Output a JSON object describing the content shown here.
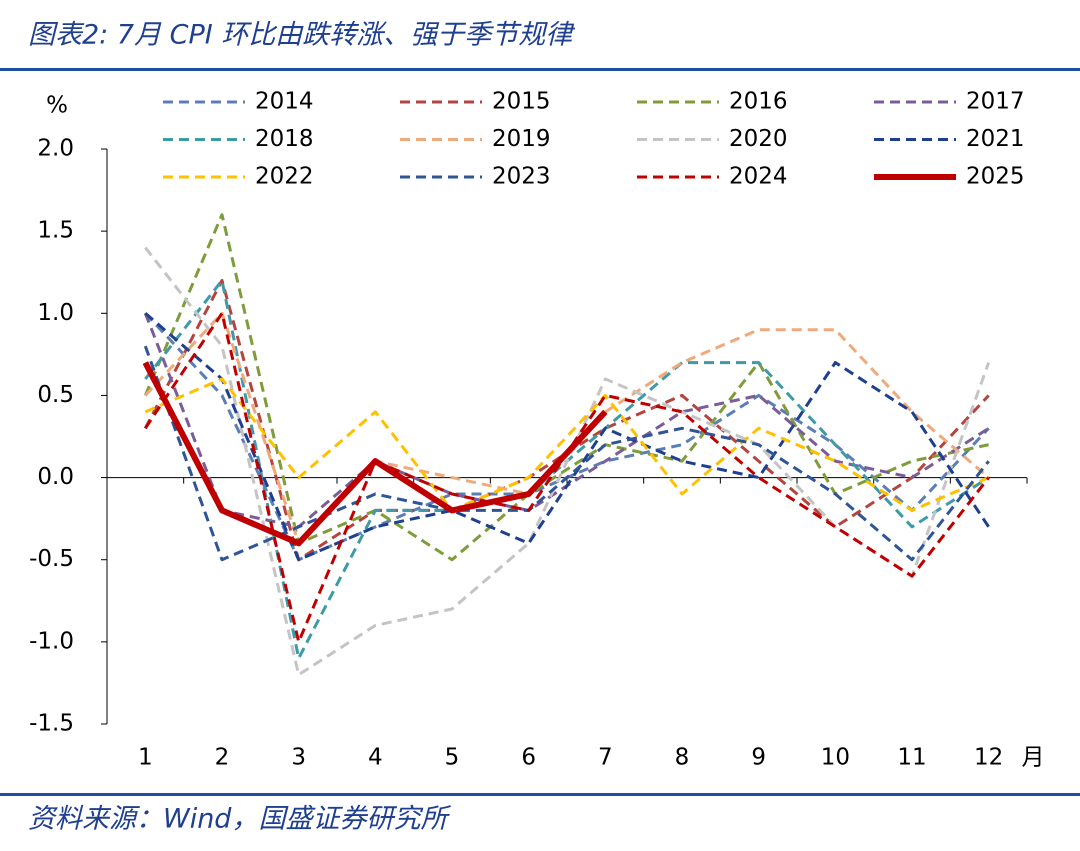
{
  "chart_data": {
    "type": "line",
    "title": "图表2: 7月 CPI 环比由跌转涨、强于季节规律",
    "source": "资料来源：Wind，国盛证券研究所",
    "ylabel": "%",
    "xlabel": "月",
    "categories": [
      "1",
      "2",
      "3",
      "4",
      "5",
      "6",
      "7",
      "8",
      "9",
      "10",
      "11",
      "12"
    ],
    "ylim": [
      -1.5,
      2.0
    ],
    "yticks": [
      {
        "value": -1.5,
        "label": "-1.5"
      },
      {
        "value": -1.0,
        "label": "-1.0"
      },
      {
        "value": -0.5,
        "label": "-0.5"
      },
      {
        "value": 0,
        "label": "0.0"
      },
      {
        "value": 0.5,
        "label": "0.5"
      },
      {
        "value": 1.0,
        "label": "1.0"
      },
      {
        "value": 1.5,
        "label": "1.5"
      },
      {
        "value": 2.0,
        "label": "2.0"
      }
    ],
    "legend": "top",
    "series": [
      {
        "name": "2014",
        "color": "#5b7fb5",
        "dashed": true,
        "values": [
          1.0,
          0.5,
          -0.5,
          -0.3,
          -0.1,
          -0.1,
          0.1,
          0.2,
          0.5,
          0.2,
          -0.2,
          0.3
        ]
      },
      {
        "name": "2015",
        "color": "#b5433e",
        "dashed": true,
        "values": [
          0.3,
          1.2,
          -0.5,
          -0.2,
          -0.2,
          0.0,
          0.3,
          0.5,
          0.1,
          -0.3,
          0.0,
          0.5
        ]
      },
      {
        "name": "2016",
        "color": "#7f9c3a",
        "dashed": true,
        "values": [
          0.5,
          1.6,
          -0.4,
          -0.2,
          -0.5,
          -0.1,
          0.2,
          0.1,
          0.7,
          -0.1,
          0.1,
          0.2
        ]
      },
      {
        "name": "2017",
        "color": "#7a5c97",
        "dashed": true,
        "values": [
          1.0,
          -0.2,
          -0.3,
          0.1,
          -0.1,
          -0.2,
          0.1,
          0.4,
          0.5,
          0.1,
          0.0,
          0.3
        ]
      },
      {
        "name": "2018",
        "color": "#3e9aa8",
        "dashed": true,
        "values": [
          0.6,
          1.2,
          -1.1,
          -0.2,
          -0.2,
          -0.1,
          0.3,
          0.7,
          0.7,
          0.2,
          -0.3,
          0.0
        ]
      },
      {
        "name": "2019",
        "color": "#f0a97a",
        "dashed": true,
        "values": [
          0.5,
          1.0,
          -0.4,
          0.1,
          0.0,
          -0.1,
          0.4,
          0.7,
          0.9,
          0.9,
          0.4,
          0.0
        ]
      },
      {
        "name": "2020",
        "color": "#c4c4c4",
        "dashed": true,
        "values": [
          1.4,
          0.8,
          -1.2,
          -0.9,
          -0.8,
          -0.4,
          0.6,
          0.4,
          0.2,
          -0.3,
          -0.6,
          0.7
        ]
      },
      {
        "name": "2021",
        "color": "#1f3f8f",
        "dashed": true,
        "values": [
          1.0,
          0.6,
          -0.5,
          -0.3,
          -0.2,
          -0.4,
          0.3,
          0.1,
          0.0,
          0.7,
          0.4,
          -0.3
        ]
      },
      {
        "name": "2022",
        "color": "#ffc000",
        "dashed": true,
        "values": [
          0.4,
          0.6,
          0.0,
          0.4,
          -0.2,
          0.0,
          0.5,
          -0.1,
          0.3,
          0.1,
          -0.2,
          0.0
        ]
      },
      {
        "name": "2023",
        "color": "#2f5597",
        "dashed": true,
        "values": [
          0.8,
          -0.5,
          -0.3,
          -0.1,
          -0.2,
          -0.2,
          0.2,
          0.3,
          0.2,
          -0.1,
          -0.5,
          0.1
        ]
      },
      {
        "name": "2024",
        "color": "#c00000",
        "dashed": true,
        "values": [
          0.3,
          1.0,
          -1.0,
          0.1,
          -0.1,
          -0.2,
          0.5,
          0.4,
          0.0,
          -0.3,
          -0.6,
          0.0
        ]
      },
      {
        "name": "2025",
        "color": "#c00000",
        "dashed": false,
        "values": [
          0.7,
          -0.2,
          -0.4,
          0.1,
          -0.2,
          -0.1,
          0.4,
          null,
          null,
          null,
          null,
          null
        ]
      }
    ]
  }
}
